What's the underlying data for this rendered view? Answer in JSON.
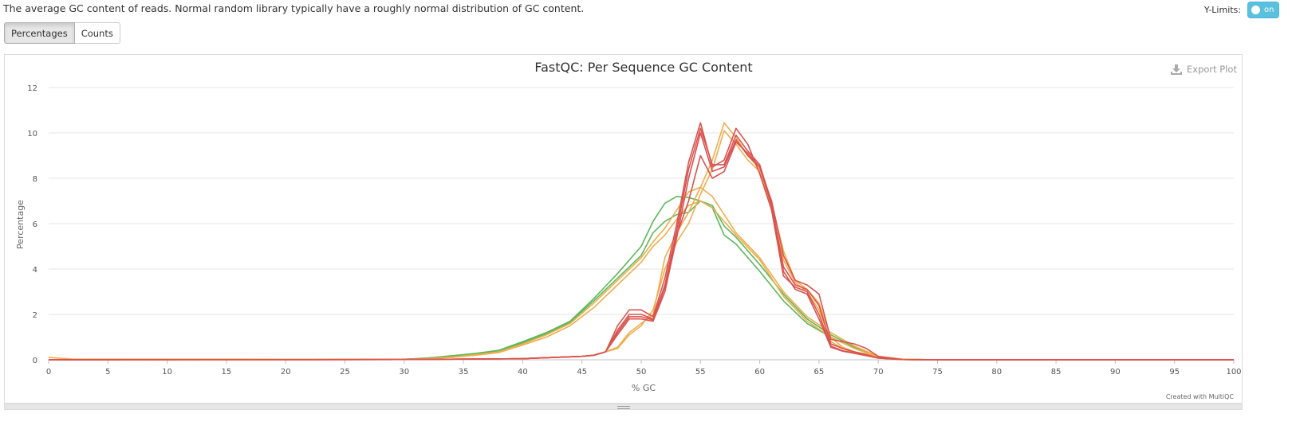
{
  "description": "The average GC content of reads. Normal random library typically have a roughly normal distribution of GC content.",
  "ylimits": {
    "label": "Y-Limits:",
    "toggle_text": "on"
  },
  "buttons": {
    "percentages": "Percentages",
    "counts": "Counts"
  },
  "export_label": "Export Plot",
  "credit": "Created with MultiQC",
  "chart_data": {
    "type": "line",
    "title": "FastQC: Per Sequence GC Content",
    "xlabel": "% GC",
    "ylabel": "Percentage",
    "xlim": [
      0,
      100
    ],
    "ylim": [
      0,
      12
    ],
    "xticks": [
      0,
      5,
      10,
      15,
      20,
      25,
      30,
      35,
      40,
      45,
      50,
      55,
      60,
      65,
      70,
      75,
      80,
      85,
      90,
      95,
      100
    ],
    "yticks": [
      0,
      2,
      4,
      6,
      8,
      10,
      12
    ],
    "grid": true,
    "colors": {
      "pass": "#5cb85c",
      "warn": "#f0ad4e",
      "fail": "#d9534f"
    },
    "series": [
      {
        "status": "pass",
        "x": [
          0,
          30,
          32,
          34,
          36,
          38,
          40,
          42,
          44,
          46,
          48,
          50,
          51,
          52,
          53,
          54,
          55,
          56,
          57,
          58,
          60,
          62,
          64,
          66,
          68,
          70,
          72,
          75,
          100
        ],
        "y": [
          0,
          0.02,
          0.08,
          0.18,
          0.28,
          0.42,
          0.8,
          1.2,
          1.7,
          2.7,
          3.8,
          5.0,
          6.1,
          6.9,
          7.2,
          7.15,
          7.0,
          6.7,
          5.5,
          5.1,
          3.9,
          2.6,
          1.6,
          1.0,
          0.5,
          0.12,
          0.02,
          0,
          0
        ]
      },
      {
        "status": "pass",
        "x": [
          0,
          30,
          32,
          34,
          36,
          38,
          40,
          42,
          44,
          46,
          48,
          50,
          51,
          52,
          53,
          54,
          55,
          56,
          57,
          58,
          60,
          62,
          64,
          66,
          68,
          70,
          72,
          75,
          100
        ],
        "y": [
          0,
          0.02,
          0.07,
          0.15,
          0.25,
          0.38,
          0.75,
          1.15,
          1.65,
          2.6,
          3.6,
          4.6,
          5.6,
          6.1,
          6.4,
          6.5,
          7.0,
          6.8,
          5.9,
          5.4,
          4.2,
          2.9,
          1.8,
          1.1,
          0.55,
          0.14,
          0.02,
          0,
          0
        ]
      },
      {
        "status": "warn",
        "x": [
          0,
          2,
          30,
          32,
          34,
          36,
          38,
          40,
          42,
          44,
          46,
          48,
          50,
          51,
          52,
          53,
          54,
          55,
          56,
          57,
          58,
          60,
          62,
          64,
          66,
          68,
          70,
          72,
          75,
          100
        ],
        "y": [
          0.1,
          0.03,
          0.02,
          0.05,
          0.12,
          0.22,
          0.35,
          0.7,
          1.1,
          1.6,
          2.5,
          3.5,
          4.5,
          5.2,
          5.8,
          6.6,
          7.4,
          7.6,
          7.2,
          6.4,
          5.6,
          4.5,
          3.0,
          1.9,
          1.2,
          0.6,
          0.15,
          0.03,
          0,
          0
        ]
      },
      {
        "status": "warn",
        "x": [
          0,
          30,
          32,
          34,
          36,
          38,
          40,
          42,
          44,
          46,
          48,
          50,
          51,
          52,
          53,
          54,
          55,
          56,
          57,
          58,
          60,
          62,
          64,
          66,
          68,
          70,
          72,
          75,
          100
        ],
        "y": [
          0,
          0.02,
          0.05,
          0.1,
          0.2,
          0.32,
          0.65,
          1.0,
          1.5,
          2.3,
          3.3,
          4.3,
          5.0,
          5.5,
          6.2,
          6.8,
          7.0,
          6.7,
          6.1,
          5.5,
          4.4,
          2.8,
          1.7,
          1.0,
          0.5,
          0.12,
          0.02,
          0,
          0
        ]
      },
      {
        "status": "warn",
        "x": [
          0,
          30,
          40,
          45,
          46,
          47,
          48,
          49,
          50,
          51,
          52,
          53,
          54,
          55,
          56,
          57,
          58,
          59,
          60,
          61,
          62,
          63,
          64,
          65,
          66,
          67,
          68,
          69,
          70,
          72,
          75,
          100
        ],
        "y": [
          0,
          0.01,
          0.05,
          0.15,
          0.2,
          0.35,
          0.55,
          1.2,
          1.6,
          2.0,
          4.5,
          5.6,
          6.5,
          7.6,
          8.8,
          10.45,
          9.8,
          9.0,
          8.4,
          6.6,
          4.4,
          3.4,
          3.0,
          2.2,
          0.8,
          0.5,
          0.3,
          0.2,
          0.08,
          0.01,
          0,
          0
        ]
      },
      {
        "status": "warn",
        "x": [
          0,
          30,
          40,
          45,
          46,
          47,
          48,
          49,
          50,
          51,
          52,
          53,
          54,
          55,
          56,
          57,
          58,
          59,
          60,
          61,
          62,
          63,
          64,
          65,
          66,
          67,
          68,
          69,
          70,
          72,
          75,
          100
        ],
        "y": [
          0,
          0.01,
          0.05,
          0.15,
          0.2,
          0.35,
          0.5,
          1.1,
          1.5,
          2.2,
          4.0,
          5.2,
          6.0,
          7.3,
          8.4,
          10.1,
          9.5,
          8.8,
          8.3,
          6.9,
          4.8,
          3.5,
          3.1,
          2.5,
          1.0,
          0.55,
          0.35,
          0.25,
          0.1,
          0.01,
          0,
          0
        ]
      },
      {
        "status": "fail",
        "x": [
          0,
          30,
          40,
          45,
          46,
          47,
          48,
          49,
          50,
          51,
          52,
          53,
          54,
          55,
          56,
          57,
          58,
          59,
          60,
          61,
          62,
          63,
          64,
          65,
          66,
          67,
          68,
          69,
          70,
          72,
          75,
          100
        ],
        "y": [
          0,
          0.01,
          0.05,
          0.15,
          0.2,
          0.35,
          1.5,
          2.2,
          2.2,
          1.9,
          3.6,
          6.0,
          8.7,
          10.45,
          8.5,
          8.8,
          10.2,
          9.5,
          8.2,
          6.6,
          3.7,
          3.2,
          3.0,
          2.0,
          0.6,
          0.4,
          0.3,
          0.2,
          0.08,
          0.01,
          0,
          0
        ]
      },
      {
        "status": "fail",
        "x": [
          0,
          30,
          40,
          45,
          46,
          47,
          48,
          49,
          50,
          51,
          52,
          53,
          54,
          55,
          56,
          57,
          58,
          59,
          60,
          61,
          62,
          63,
          64,
          65,
          66,
          67,
          68,
          69,
          70,
          72,
          75,
          100
        ],
        "y": [
          0,
          0.01,
          0.05,
          0.15,
          0.2,
          0.35,
          1.3,
          2.0,
          2.0,
          1.8,
          3.3,
          5.7,
          8.4,
          10.2,
          8.6,
          8.6,
          9.9,
          9.2,
          8.6,
          6.9,
          3.9,
          3.1,
          2.9,
          1.8,
          0.55,
          0.38,
          0.28,
          0.18,
          0.07,
          0.01,
          0,
          0
        ]
      },
      {
        "status": "fail",
        "x": [
          0,
          30,
          40,
          45,
          46,
          47,
          48,
          49,
          50,
          51,
          52,
          53,
          54,
          55,
          56,
          57,
          58,
          59,
          60,
          61,
          62,
          63,
          64,
          65,
          66,
          67,
          68,
          69,
          70,
          72,
          75,
          100
        ],
        "y": [
          0,
          0.01,
          0.05,
          0.15,
          0.2,
          0.35,
          1.1,
          1.8,
          1.8,
          1.7,
          3.0,
          5.4,
          8.0,
          10.0,
          8.3,
          8.5,
          9.7,
          9.0,
          8.5,
          7.0,
          4.6,
          3.5,
          3.3,
          2.9,
          0.9,
          0.8,
          0.7,
          0.5,
          0.15,
          0.01,
          0,
          0
        ]
      },
      {
        "status": "fail",
        "x": [
          0,
          30,
          40,
          45,
          46,
          47,
          48,
          49,
          50,
          51,
          52,
          53,
          54,
          55,
          56,
          57,
          58,
          59,
          60,
          61,
          62,
          63,
          64,
          65,
          66,
          67,
          68,
          69,
          70,
          72,
          75,
          100
        ],
        "y": [
          0,
          0.01,
          0.05,
          0.15,
          0.2,
          0.35,
          1.2,
          1.9,
          1.9,
          1.75,
          3.2,
          5.5,
          7.0,
          9.0,
          8.0,
          8.3,
          9.6,
          9.1,
          8.5,
          6.8,
          4.1,
          3.3,
          3.1,
          2.4,
          0.7,
          0.5,
          0.35,
          0.22,
          0.08,
          0.01,
          0,
          0
        ]
      }
    ]
  }
}
